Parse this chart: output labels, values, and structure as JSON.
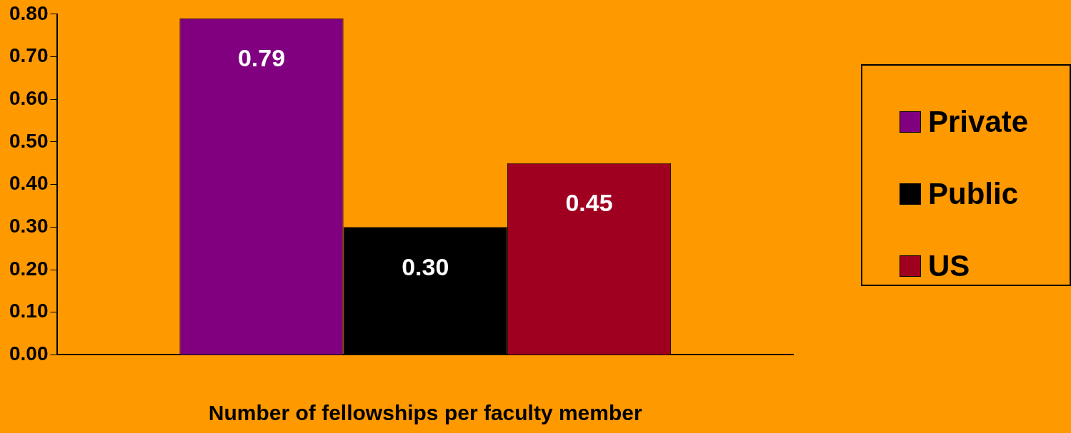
{
  "chart_data": {
    "type": "bar",
    "xlabel": "Number of fellowships per faculty member",
    "categories": [
      null
    ],
    "series": [
      {
        "name": "Private",
        "color": "#800080",
        "values": [
          0.79
        ],
        "value_labels": [
          "0.79"
        ]
      },
      {
        "name": "Public",
        "color": "#000000",
        "values": [
          0.3
        ],
        "value_labels": [
          "0.30"
        ]
      },
      {
        "name": "US",
        "color": "#a00020",
        "values": [
          0.45
        ],
        "value_labels": [
          "0.45"
        ]
      }
    ],
    "ylim": [
      0,
      0.8
    ],
    "yticks": [
      {
        "value": 0,
        "label": "0.00"
      },
      {
        "value": 0.1,
        "label": "0.10"
      },
      {
        "value": 0.2,
        "label": "0.20"
      },
      {
        "value": 0.3,
        "label": "0.30"
      },
      {
        "value": 0.4,
        "label": "0.40"
      },
      {
        "value": 0.5,
        "label": "0.50"
      },
      {
        "value": 0.6,
        "label": "0.60"
      },
      {
        "value": 0.7,
        "label": "0.70"
      },
      {
        "value": 0.8,
        "label": "0.80"
      }
    ],
    "grid": false,
    "legend": "right"
  }
}
